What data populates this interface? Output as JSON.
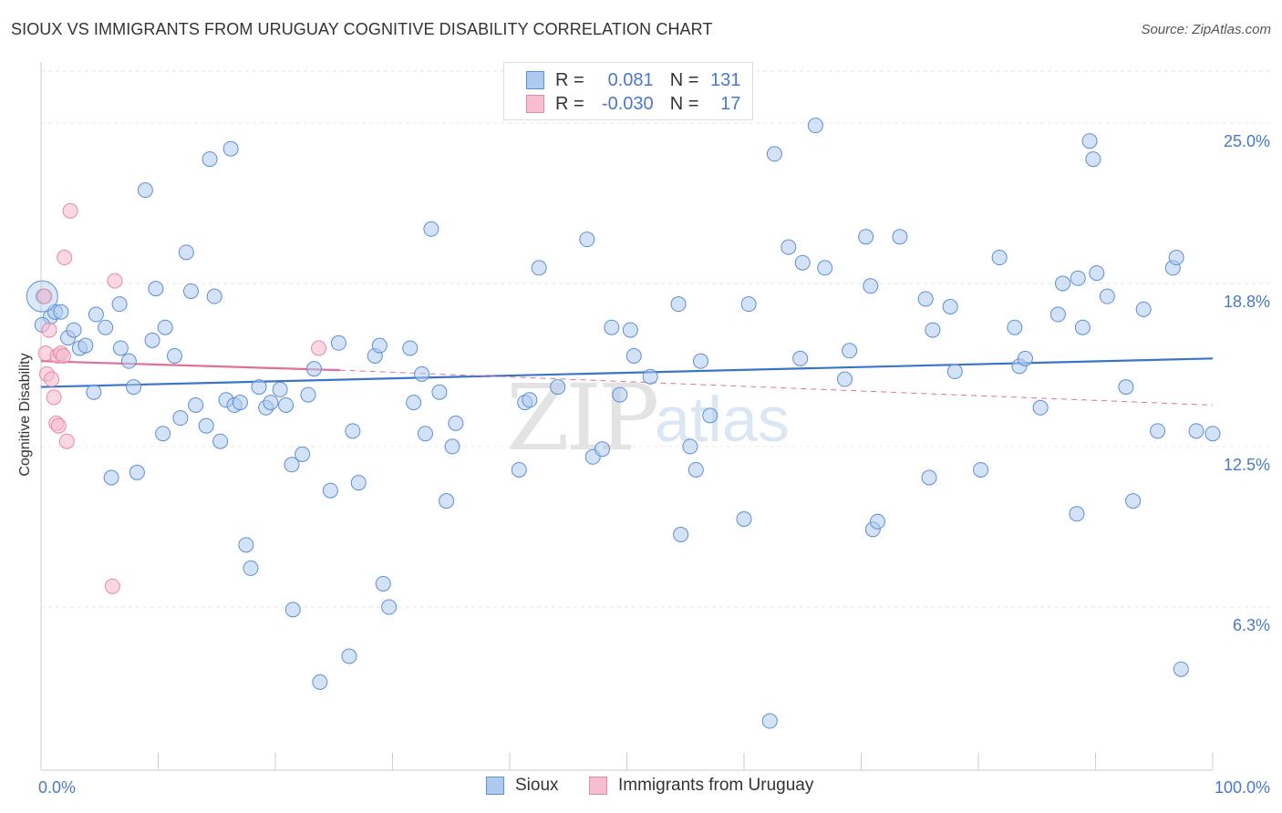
{
  "header": {
    "title": "SIOUX VS IMMIGRANTS FROM URUGUAY COGNITIVE DISABILITY CORRELATION CHART",
    "source": "Source: ZipAtlas.com"
  },
  "watermark": {
    "part1": "ZIP",
    "part2": "atlas"
  },
  "legend": {
    "rows": [
      {
        "r_label": "R =",
        "r_value": "0.081",
        "n_label": "N =",
        "n_value": "131"
      },
      {
        "r_label": "R =",
        "r_value": "-0.030",
        "n_label": "N =",
        "n_value": "17"
      }
    ]
  },
  "bottom_legend": {
    "series1": "Sioux",
    "series2": "Immigrants from Uruguay"
  },
  "colors": {
    "blue_fill": "#aecbef",
    "blue_stroke": "#5b8fd6",
    "blue_line": "#3a74c8",
    "pink_fill": "#f7bdd0",
    "pink_stroke": "#e48aa8",
    "pink_line": "#e0709a",
    "axis_text": "#4a78c9",
    "grid": "#e6e6e6"
  },
  "chart_data": {
    "type": "scatter",
    "title": "SIOUX VS IMMIGRANTS FROM URUGUAY COGNITIVE DISABILITY CORRELATION CHART",
    "xlabel": "",
    "ylabel": "Cognitive Disability",
    "xlim": [
      0,
      100
    ],
    "ylim": [
      0,
      27.0
    ],
    "x_tick_labels": [
      "0.0%",
      "100.0%"
    ],
    "y_ticks": [
      6.3,
      12.5,
      18.8,
      25.0
    ],
    "y_tick_labels": [
      "6.3%",
      "12.5%",
      "18.8%",
      "25.0%"
    ],
    "grid": true,
    "legend_position": "top-center",
    "series": [
      {
        "name": "Sioux",
        "R": 0.081,
        "N": 131,
        "trend": {
          "x": [
            0,
            100
          ],
          "y": [
            14.8,
            15.9
          ]
        },
        "points": [
          [
            0.2,
            18.3
          ],
          [
            0.8,
            17.5
          ],
          [
            1.2,
            17.7
          ],
          [
            1.7,
            17.7
          ],
          [
            2.3,
            16.7
          ],
          [
            2.8,
            17.0
          ],
          [
            3.3,
            16.3
          ],
          [
            3.8,
            16.4
          ],
          [
            4.5,
            14.6
          ],
          [
            4.7,
            17.6
          ],
          [
            5.5,
            17.1
          ],
          [
            6.0,
            11.3
          ],
          [
            6.7,
            18.0
          ],
          [
            6.8,
            16.3
          ],
          [
            7.5,
            15.8
          ],
          [
            7.9,
            14.8
          ],
          [
            8.2,
            11.5
          ],
          [
            8.9,
            22.4
          ],
          [
            9.5,
            16.6
          ],
          [
            9.8,
            18.6
          ],
          [
            10.4,
            13.0
          ],
          [
            10.6,
            17.1
          ],
          [
            11.4,
            16.0
          ],
          [
            11.9,
            13.6
          ],
          [
            12.4,
            20.0
          ],
          [
            12.8,
            18.5
          ],
          [
            13.2,
            14.1
          ],
          [
            14.1,
            13.3
          ],
          [
            14.4,
            23.6
          ],
          [
            14.8,
            18.3
          ],
          [
            15.3,
            12.7
          ],
          [
            15.8,
            14.3
          ],
          [
            16.2,
            24.0
          ],
          [
            16.5,
            14.1
          ],
          [
            17.0,
            14.2
          ],
          [
            17.5,
            8.7
          ],
          [
            17.9,
            7.8
          ],
          [
            18.6,
            14.8
          ],
          [
            19.2,
            14.0
          ],
          [
            19.6,
            14.2
          ],
          [
            20.4,
            14.7
          ],
          [
            20.9,
            14.1
          ],
          [
            21.4,
            11.8
          ],
          [
            21.5,
            6.2
          ],
          [
            22.3,
            12.2
          ],
          [
            22.8,
            14.5
          ],
          [
            23.3,
            15.5
          ],
          [
            23.8,
            3.4
          ],
          [
            24.7,
            10.8
          ],
          [
            25.4,
            16.5
          ],
          [
            26.3,
            4.4
          ],
          [
            26.6,
            13.1
          ],
          [
            27.1,
            11.1
          ],
          [
            28.5,
            16.0
          ],
          [
            28.9,
            16.4
          ],
          [
            29.2,
            7.2
          ],
          [
            29.7,
            6.3
          ],
          [
            31.5,
            16.3
          ],
          [
            31.8,
            14.2
          ],
          [
            32.5,
            15.3
          ],
          [
            32.8,
            13.0
          ],
          [
            33.3,
            20.9
          ],
          [
            34.0,
            14.6
          ],
          [
            34.6,
            10.4
          ],
          [
            35.1,
            12.5
          ],
          [
            35.4,
            13.4
          ],
          [
            40.8,
            11.6
          ],
          [
            41.3,
            14.2
          ],
          [
            41.7,
            14.3
          ],
          [
            42.5,
            19.4
          ],
          [
            44.1,
            14.8
          ],
          [
            46.6,
            20.5
          ],
          [
            47.1,
            12.1
          ],
          [
            47.9,
            12.4
          ],
          [
            48.7,
            17.1
          ],
          [
            49.4,
            14.5
          ],
          [
            50.3,
            17.0
          ],
          [
            50.6,
            16.0
          ],
          [
            52.0,
            15.2
          ],
          [
            54.4,
            18.0
          ],
          [
            54.6,
            9.1
          ],
          [
            55.4,
            12.5
          ],
          [
            55.9,
            11.6
          ],
          [
            56.3,
            15.8
          ],
          [
            57.1,
            13.7
          ],
          [
            60.0,
            9.7
          ],
          [
            60.4,
            18.0
          ],
          [
            62.2,
            1.9
          ],
          [
            62.6,
            23.8
          ],
          [
            63.8,
            20.2
          ],
          [
            64.8,
            15.9
          ],
          [
            65.0,
            19.6
          ],
          [
            66.1,
            24.9
          ],
          [
            66.9,
            19.4
          ],
          [
            68.6,
            15.1
          ],
          [
            69.0,
            16.2
          ],
          [
            70.4,
            20.6
          ],
          [
            70.8,
            18.7
          ],
          [
            71.0,
            9.3
          ],
          [
            71.4,
            9.6
          ],
          [
            73.3,
            20.6
          ],
          [
            75.5,
            18.2
          ],
          [
            75.8,
            11.3
          ],
          [
            76.1,
            17.0
          ],
          [
            77.6,
            17.9
          ],
          [
            78.0,
            15.4
          ],
          [
            80.2,
            11.6
          ],
          [
            81.8,
            19.8
          ],
          [
            83.1,
            17.1
          ],
          [
            83.5,
            15.6
          ],
          [
            84.0,
            15.9
          ],
          [
            85.3,
            14.0
          ],
          [
            86.8,
            17.6
          ],
          [
            87.2,
            18.8
          ],
          [
            88.4,
            9.9
          ],
          [
            88.5,
            19.0
          ],
          [
            88.9,
            17.1
          ],
          [
            89.5,
            24.3
          ],
          [
            89.8,
            23.6
          ],
          [
            90.1,
            19.2
          ],
          [
            91.0,
            18.3
          ],
          [
            92.6,
            14.8
          ],
          [
            93.2,
            10.4
          ],
          [
            94.1,
            17.8
          ],
          [
            95.3,
            13.1
          ],
          [
            96.6,
            19.4
          ],
          [
            96.9,
            19.8
          ],
          [
            97.3,
            3.9
          ],
          [
            98.6,
            13.1
          ],
          [
            100.0,
            13.0
          ],
          [
            0.1,
            17.2
          ]
        ]
      },
      {
        "name": "Immigrants from Uruguay",
        "R": -0.03,
        "N": 17,
        "trend": {
          "x": [
            0,
            25.5,
            100
          ],
          "y": [
            15.8,
            15.45,
            14.1
          ]
        },
        "points": [
          [
            0.3,
            18.3
          ],
          [
            0.4,
            16.1
          ],
          [
            0.5,
            15.3
          ],
          [
            0.7,
            17.0
          ],
          [
            0.9,
            15.1
          ],
          [
            1.1,
            14.4
          ],
          [
            1.3,
            13.4
          ],
          [
            1.4,
            16.0
          ],
          [
            1.5,
            13.3
          ],
          [
            1.7,
            16.1
          ],
          [
            1.9,
            16.0
          ],
          [
            2.0,
            19.8
          ],
          [
            2.2,
            12.7
          ],
          [
            2.5,
            21.6
          ],
          [
            6.1,
            7.1
          ],
          [
            6.3,
            18.9
          ],
          [
            23.7,
            16.3
          ]
        ]
      }
    ]
  }
}
